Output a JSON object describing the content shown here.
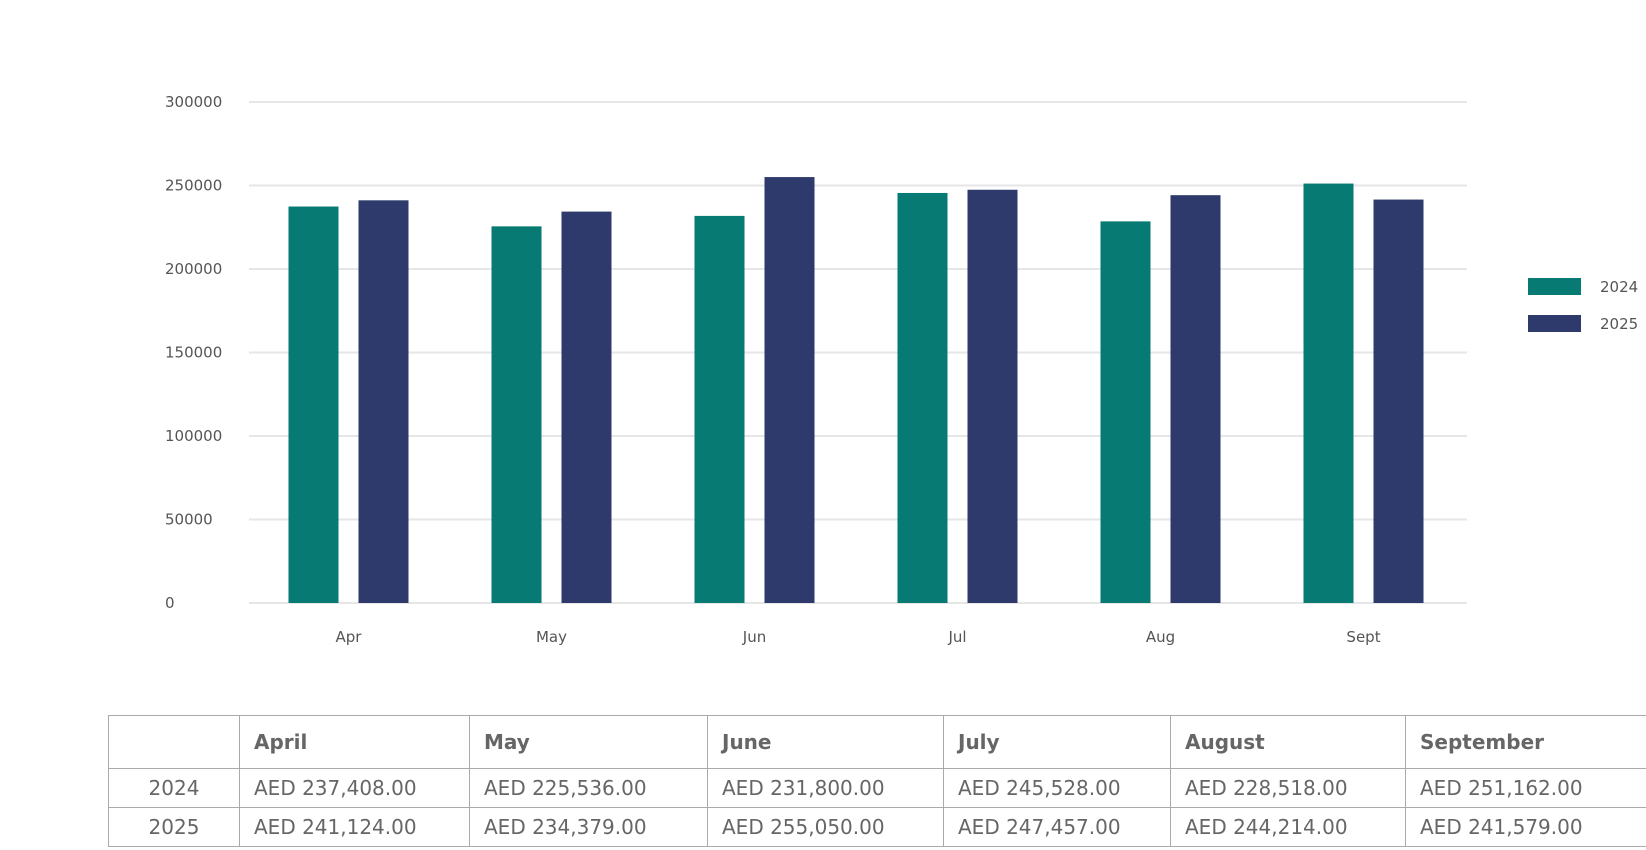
{
  "chart_data": {
    "type": "bar",
    "title": "",
    "xlabel": "",
    "ylabel": "",
    "categories": [
      "Apr",
      "May",
      "Jun",
      "Jul",
      "Aug",
      "Sept"
    ],
    "series": [
      {
        "name": "2024",
        "color": "#067a73",
        "values": [
          237408,
          225536,
          231800,
          245528,
          228518,
          251162
        ]
      },
      {
        "name": "2025",
        "color": "#2e3a6b",
        "values": [
          241124,
          234379,
          255050,
          247457,
          244214,
          241579
        ]
      }
    ],
    "ylim": [
      0,
      300000
    ],
    "yticks": [
      "0",
      "50000",
      "100000",
      "150000",
      "200000",
      "250000",
      "300000"
    ],
    "grid": true,
    "legend": "right"
  },
  "table": {
    "headers": [
      "",
      "April",
      "May",
      "June",
      "July",
      "August",
      "September"
    ],
    "rows": [
      {
        "year": "2024",
        "cells": [
          "AED 237,408.00",
          "AED 225,536.00",
          "AED 231,800.00",
          "AED 245,528.00",
          "AED 228,518.00",
          "AED 251,162.00"
        ]
      },
      {
        "year": "2025",
        "cells": [
          "AED 241,124.00",
          "AED 234,379.00",
          "AED 255,050.00",
          "AED 247,457.00",
          "AED 244,214.00",
          "AED 241,579.00"
        ]
      }
    ]
  }
}
